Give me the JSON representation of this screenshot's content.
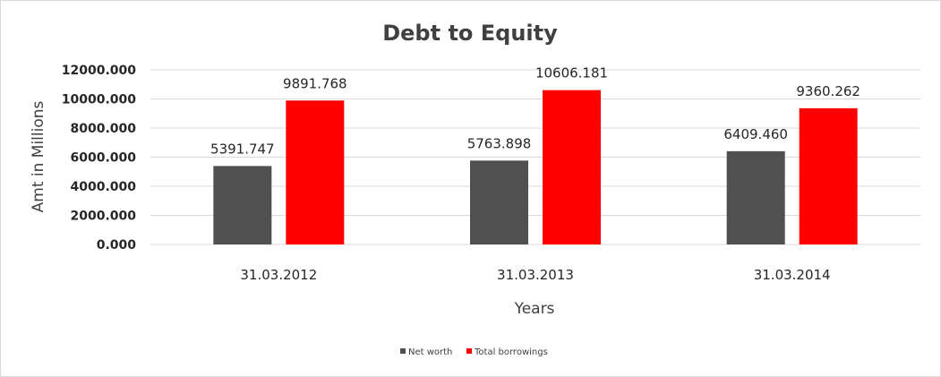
{
  "chart_data": {
    "type": "bar",
    "title": "Debt to Equity",
    "xlabel": "Years",
    "ylabel": "Amt in Millions",
    "categories": [
      "31.03.2012",
      "31.03.2013",
      "31.03.2014"
    ],
    "series": [
      {
        "name": "Net worth",
        "color": "#505050",
        "values": [
          5391.747,
          5763.898,
          6409.46
        ],
        "labels": [
          "5391.747",
          "5763.898",
          "6409.460"
        ]
      },
      {
        "name": "Total borrowings",
        "color": "#ff0000",
        "values": [
          9891.768,
          10606.181,
          9360.262
        ],
        "labels": [
          "9891.768",
          "10606.181",
          "9360.262"
        ]
      }
    ],
    "ylim": [
      0,
      12000
    ],
    "yticks": [
      "0.000",
      "2000.000",
      "4000.000",
      "6000.000",
      "8000.000",
      "10000.000",
      "12000.000"
    ],
    "ytick_values": [
      0,
      2000,
      4000,
      6000,
      8000,
      10000,
      12000
    ],
    "grid": true,
    "legend_position": "bottom"
  }
}
